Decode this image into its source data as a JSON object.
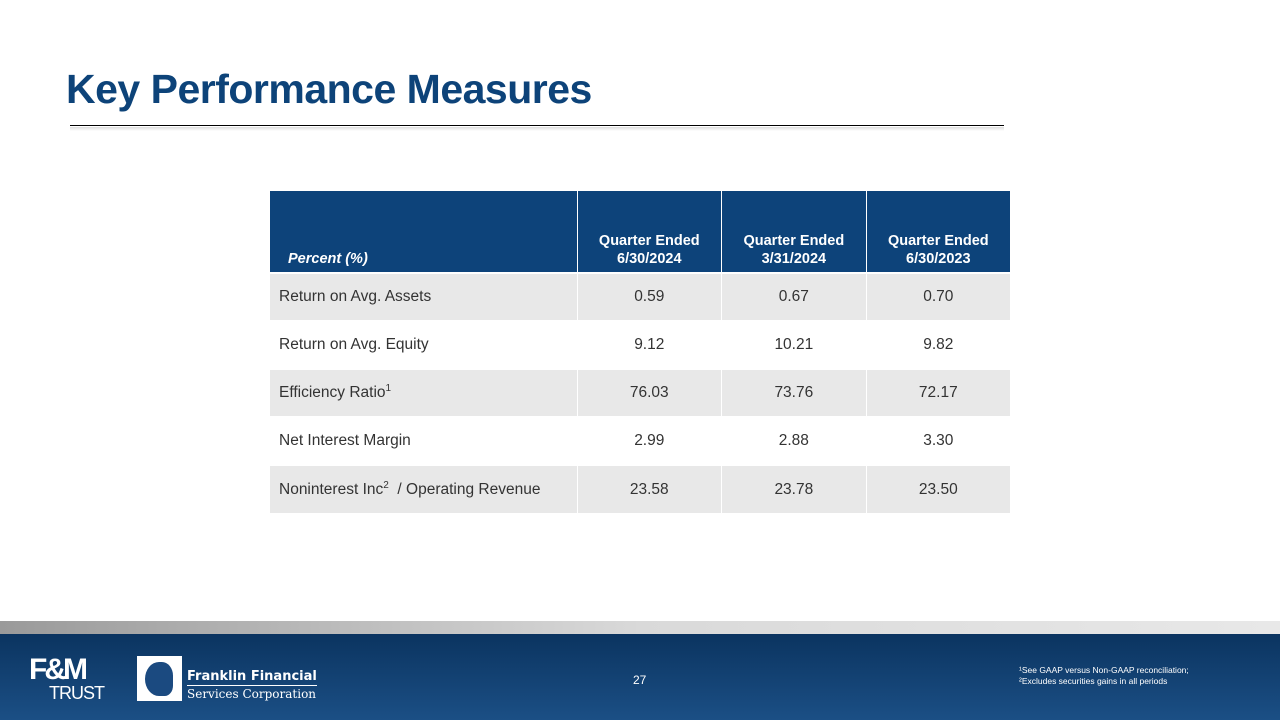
{
  "title": "Key Performance Measures",
  "table": {
    "headers": [
      "Percent (%)",
      "Quarter Ended\n6/30/2024",
      "Quarter Ended\n3/31/2024",
      "Quarter Ended\n6/30/2023"
    ],
    "header_lines": [
      [
        "Quarter Ended",
        "6/30/2024"
      ],
      [
        "Quarter Ended",
        "3/31/2024"
      ],
      [
        "Quarter Ended",
        "6/30/2023"
      ]
    ],
    "rows": [
      {
        "label": "Return  on Avg. Assets",
        "sup": "",
        "label_after": "",
        "values": [
          "0.59",
          "0.67",
          "0.70"
        ]
      },
      {
        "label": "Return  on Avg. Equity",
        "sup": "",
        "label_after": "",
        "values": [
          "9.12",
          "10.21",
          "9.82"
        ]
      },
      {
        "label": "Efficiency  Ratio",
        "sup": "1",
        "label_after": "",
        "values": [
          "76.03",
          "73.76",
          "72.17"
        ]
      },
      {
        "label": "Net Interest  Margin",
        "sup": "",
        "label_after": "",
        "values": [
          "2.99",
          "2.88",
          "3.30"
        ]
      },
      {
        "label": "Noninterest  Inc",
        "sup": "2",
        "label_after": "  / Operating Revenue",
        "values": [
          "23.58",
          "23.78",
          "23.50"
        ]
      }
    ]
  },
  "footer": {
    "page_number": "27",
    "notes": [
      "¹See  GAAP  versus Non-GAAP reconciliation;",
      "²Excludes securities gains in all periods"
    ],
    "logo_fm": {
      "top": "F&M",
      "bottom": "TRUST"
    },
    "logo_ffs": {
      "line1": "Franklin Financial",
      "line2": "Services Corporation"
    }
  },
  "colors": {
    "brand_blue": "#0d437a",
    "row_shade": "#e8e8e8"
  }
}
